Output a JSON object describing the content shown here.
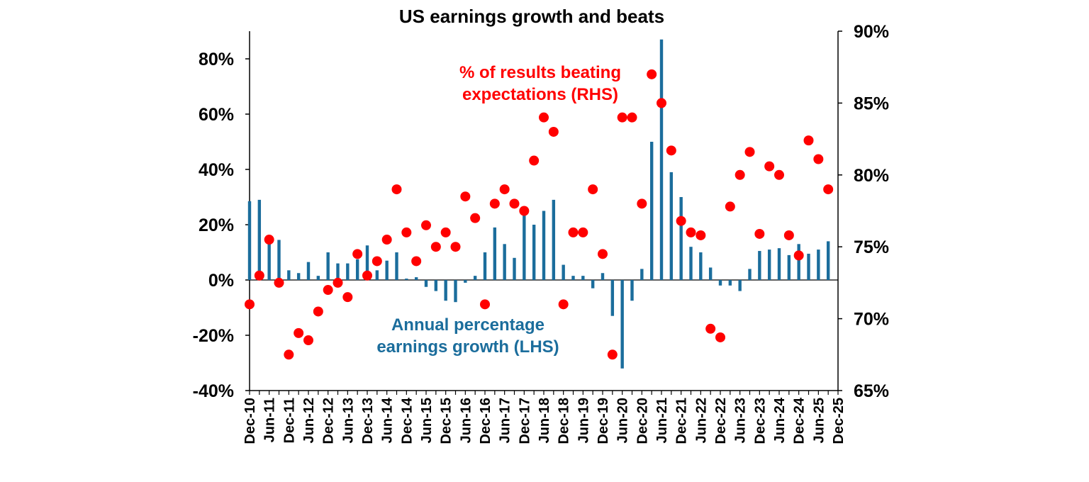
{
  "chart_data": {
    "type": "bar",
    "title": "US earnings growth and beats",
    "categories": [
      "Dec-10",
      null,
      "Jun-11",
      null,
      "Dec-11",
      null,
      "Jun-12",
      null,
      "Dec-12",
      null,
      "Jun-13",
      null,
      "Dec-13",
      null,
      "Jun-14",
      null,
      "Dec-14",
      null,
      "Jun-15",
      null,
      "Dec-15",
      null,
      "Jun-16",
      null,
      "Dec-16",
      null,
      "Jun-17",
      null,
      "Dec-17",
      null,
      "Jun-18",
      null,
      "Dec-18",
      null,
      "Jun-19",
      null,
      "Dec-19",
      null,
      "Jun-20",
      null,
      "Dec-20",
      null,
      "Jun-21",
      null,
      "Dec-21",
      null,
      "Jun-22",
      null,
      "Dec-22",
      null,
      "Jun-23",
      null,
      "Dec-23",
      null,
      "Jun-24",
      null,
      "Dec-24",
      null,
      "Jun-25",
      null,
      "Dec-25"
    ],
    "series": [
      {
        "type": "bar",
        "color": "#1b6d9c",
        "values": [
          28.5,
          29,
          13.5,
          14.5,
          3.5,
          2.5,
          6.5,
          1.5,
          10,
          6,
          6,
          7.5,
          12.5,
          3.5,
          7,
          10,
          0.5,
          1,
          -2.5,
          -4,
          -7.5,
          -8,
          -1,
          1.5,
          10,
          19,
          13,
          8,
          25,
          20,
          25,
          29,
          5.5,
          1.5,
          1.5,
          -3,
          2.5,
          -13,
          -32,
          -7.5,
          4,
          50,
          87,
          39,
          30,
          12,
          10,
          4.5,
          -2,
          -2,
          -4,
          4,
          10.5,
          11,
          11.5,
          9,
          13,
          9.5,
          11,
          14,
          null
        ]
      },
      {
        "type": "scatter",
        "axis": "y2",
        "color": "#ff0000",
        "values": [
          71,
          73,
          75.5,
          72.5,
          67.5,
          69,
          68.5,
          70.5,
          72,
          72.5,
          71.5,
          74.5,
          73,
          74,
          75.5,
          79,
          76,
          74,
          76.5,
          75,
          76,
          75,
          78.5,
          77,
          71,
          78,
          79,
          78,
          77.5,
          81,
          84,
          83,
          71,
          76,
          76,
          79,
          74.5,
          67.5,
          84,
          84,
          78,
          87,
          85,
          81.7,
          76.8,
          76,
          75.8,
          69.3,
          68.7,
          77.8,
          80,
          81.6,
          75.9,
          80.6,
          80,
          75.8,
          74.4,
          82.4,
          81.1,
          79,
          null
        ]
      }
    ],
    "ylim": [
      -40,
      90
    ],
    "yticks": [
      {
        "value": -40,
        "label": "-40%"
      },
      {
        "value": -20,
        "label": "-20%"
      },
      {
        "value": 0,
        "label": "0%"
      },
      {
        "value": 20,
        "label": "20%"
      },
      {
        "value": 40,
        "label": "40%"
      },
      {
        "value": 60,
        "label": "60%"
      },
      {
        "value": 80,
        "label": "80%"
      }
    ],
    "y2lim": [
      65,
      90
    ],
    "y2ticks": [
      {
        "value": 65,
        "label": "65%"
      },
      {
        "value": 70,
        "label": "70%"
      },
      {
        "value": 75,
        "label": "75%"
      },
      {
        "value": 80,
        "label": "80%"
      },
      {
        "value": 85,
        "label": "85%"
      },
      {
        "value": 90,
        "label": "90%"
      }
    ],
    "annotations": [
      {
        "lines": [
          "% of results beating",
          "expectations (RHS)"
        ],
        "color": "#ff0000"
      },
      {
        "lines": [
          "Annual percentage",
          "earnings growth (LHS)"
        ],
        "color": "#1b6d9c"
      }
    ]
  }
}
